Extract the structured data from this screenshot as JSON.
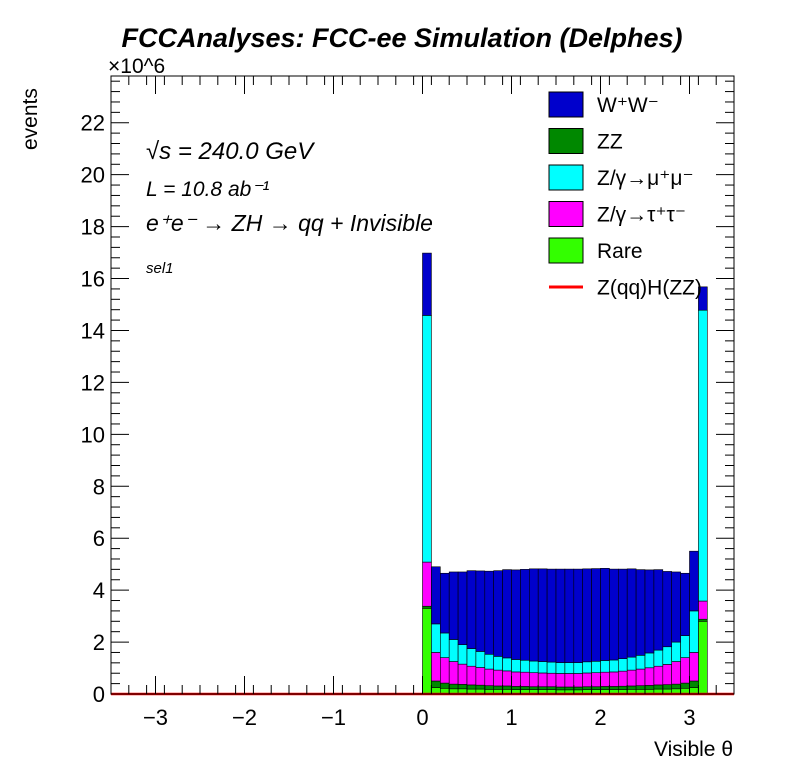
{
  "chart_data": {
    "type": "area",
    "title": "FCCAnalyses: FCC-ee Simulation (Delphes)",
    "xlabel": "Visible θ",
    "ylabel": "events",
    "y_exponent": "×10^6",
    "xlim": [
      -3.5,
      3.5
    ],
    "ylim": [
      0,
      23.8
    ],
    "y_unit_multiplier": 1000000,
    "x_ticks": [
      -3,
      -2,
      -1,
      0,
      1,
      2,
      3
    ],
    "y_ticks": [
      0,
      2,
      4,
      6,
      8,
      10,
      12,
      14,
      16,
      18,
      20,
      22
    ],
    "x": [
      0.0,
      0.1,
      0.2,
      0.3,
      0.4,
      0.5,
      0.6,
      0.7,
      0.8,
      0.9,
      1.0,
      1.1,
      1.2,
      1.3,
      1.4,
      1.5,
      1.6,
      1.7,
      1.8,
      1.9,
      2.0,
      2.1,
      2.2,
      2.3,
      2.4,
      2.5,
      2.6,
      2.7,
      2.8,
      2.9,
      3.0,
      3.1
    ],
    "series": [
      {
        "name": "Rare",
        "color": "#33ff00",
        "values": [
          3.3,
          0.25,
          0.22,
          0.2,
          0.2,
          0.19,
          0.19,
          0.18,
          0.18,
          0.18,
          0.17,
          0.17,
          0.17,
          0.17,
          0.17,
          0.16,
          0.16,
          0.16,
          0.17,
          0.17,
          0.17,
          0.17,
          0.17,
          0.18,
          0.18,
          0.18,
          0.19,
          0.19,
          0.2,
          0.22,
          0.25,
          2.8
        ]
      },
      {
        "name": "ZZ",
        "color": "#008800",
        "values": [
          0.08,
          0.25,
          0.2,
          0.18,
          0.17,
          0.16,
          0.15,
          0.14,
          0.13,
          0.13,
          0.12,
          0.12,
          0.11,
          0.11,
          0.11,
          0.11,
          0.11,
          0.11,
          0.11,
          0.11,
          0.12,
          0.12,
          0.13,
          0.13,
          0.14,
          0.15,
          0.16,
          0.17,
          0.18,
          0.2,
          0.25,
          0.08
        ]
      },
      {
        "name": "Z/γ→τ⁺τ⁻",
        "color": "#ff00ff",
        "values": [
          1.7,
          1.1,
          0.98,
          0.87,
          0.78,
          0.72,
          0.68,
          0.64,
          0.61,
          0.58,
          0.56,
          0.55,
          0.54,
          0.53,
          0.52,
          0.52,
          0.52,
          0.52,
          0.53,
          0.54,
          0.55,
          0.56,
          0.58,
          0.61,
          0.64,
          0.68,
          0.72,
          0.78,
          0.87,
          0.98,
          1.1,
          0.7
        ]
      },
      {
        "name": "Z/γ→μ⁺μ⁻",
        "color": "#00ffff",
        "values": [
          9.5,
          1.1,
          0.95,
          0.85,
          0.75,
          0.68,
          0.62,
          0.57,
          0.53,
          0.5,
          0.48,
          0.46,
          0.45,
          0.44,
          0.43,
          0.42,
          0.42,
          0.42,
          0.43,
          0.44,
          0.45,
          0.46,
          0.48,
          0.5,
          0.53,
          0.57,
          0.62,
          0.68,
          0.75,
          0.85,
          1.6,
          11.2
        ]
      },
      {
        "name": "W⁺W⁻",
        "color": "#0000cc",
        "values": [
          2.4,
          2.2,
          2.3,
          2.6,
          2.8,
          3.0,
          3.1,
          3.2,
          3.3,
          3.4,
          3.45,
          3.5,
          3.55,
          3.57,
          3.58,
          3.6,
          3.6,
          3.6,
          3.58,
          3.57,
          3.55,
          3.5,
          3.45,
          3.4,
          3.3,
          3.2,
          3.1,
          2.9,
          2.7,
          2.4,
          2.3,
          0.9
        ]
      },
      {
        "name": "Z(qq)H(ZZ)",
        "color": "#ff0000",
        "style": "line",
        "values": [
          0.0,
          0.0,
          0.0,
          0.0,
          0.0,
          0.0,
          0.0,
          0.0,
          0.0,
          0.0,
          0.0,
          0.0,
          0.0,
          0.0,
          0.0,
          0.0,
          0.0,
          0.0,
          0.0,
          0.0,
          0.0,
          0.0,
          0.0,
          0.0,
          0.0,
          0.0,
          0.0,
          0.0,
          0.0,
          0.0,
          0.0,
          0.0
        ]
      }
    ],
    "legend": {
      "placement": "top-right",
      "order": [
        "W⁺W⁻",
        "ZZ",
        "Z/γ→μ⁺μ⁻",
        "Z/γ→τ⁺τ⁻",
        "Rare",
        "Z(qq)H(ZZ)"
      ]
    },
    "annotations": [
      {
        "id": "sqrt",
        "text": "√s = 240.0 GeV"
      },
      {
        "id": "lumi",
        "text": "L = 10.8 ab⁻¹"
      },
      {
        "id": "process",
        "text": "e⁺e⁻ → ZH → qq + Invisible"
      },
      {
        "id": "selection",
        "text": "sel1"
      }
    ]
  }
}
